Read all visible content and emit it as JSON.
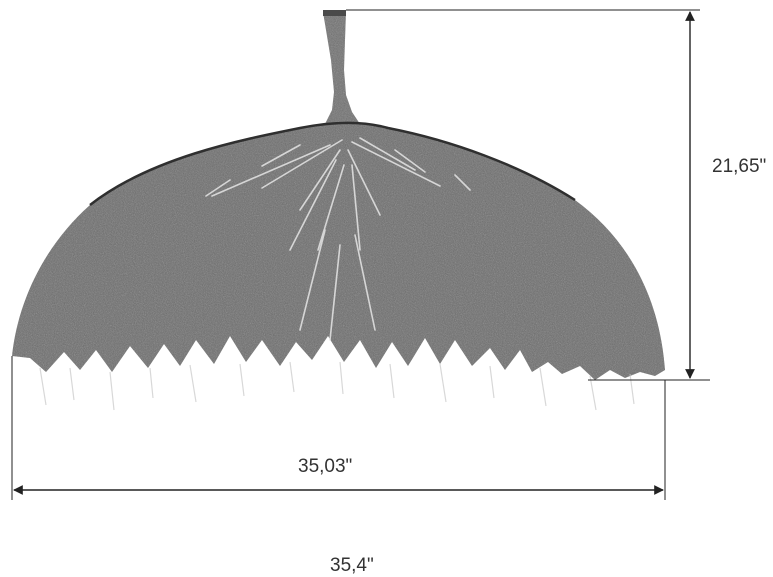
{
  "figure": {
    "subject": "pendant lamp shade",
    "dimensions": {
      "height_label": "21,65\"",
      "width_label": "35,03\"",
      "extra_label": "35,4\""
    },
    "colors": {
      "shade_fill": "#6b6b6b",
      "shade_dark": "#4a4a4a",
      "shade_highlight": "#d9d9d9",
      "dimension_line": "#222222",
      "text": "#333333"
    }
  }
}
